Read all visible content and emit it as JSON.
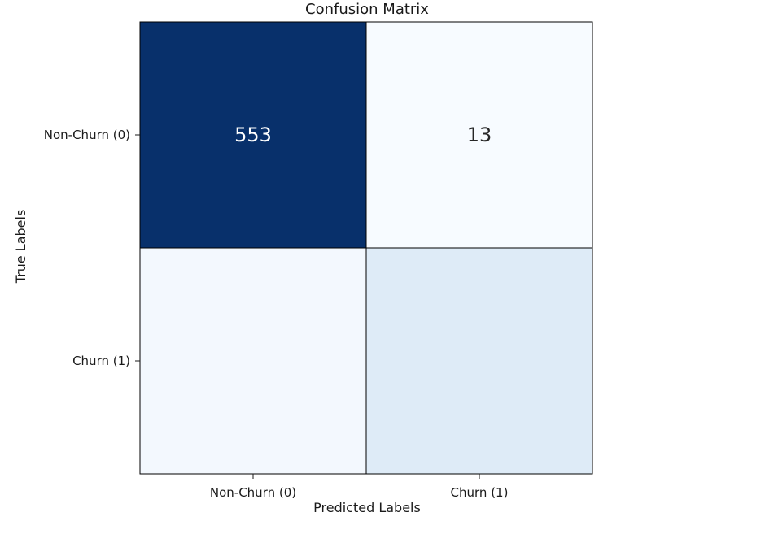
{
  "chart_data": {
    "type": "heatmap",
    "title": "Confusion Matrix",
    "xlabel": "Predicted Labels",
    "ylabel": "True Labels",
    "x_tick_labels": [
      "Non-Churn (0)",
      "Churn (1)"
    ],
    "y_tick_labels": [
      "Non-Churn (0)",
      "Churn (1)"
    ],
    "cells": [
      {
        "row": 0,
        "col": 0,
        "value": 553,
        "label": "553"
      },
      {
        "row": 0,
        "col": 1,
        "value": 13,
        "label": "13"
      },
      {
        "row": 1,
        "col": 0,
        "value": 25,
        "label": ""
      },
      {
        "row": 1,
        "col": 1,
        "value": 80,
        "label": ""
      }
    ],
    "colormap": "Blues",
    "colors": {
      "max": "#08306b",
      "min": "#f7fbff",
      "text_dark": "#262626",
      "text_light": "#ffffff",
      "grid_line": "#000000"
    },
    "colorbar": false,
    "visible_columns": "first column and most of the second column; right part of the matrix is cut off"
  }
}
